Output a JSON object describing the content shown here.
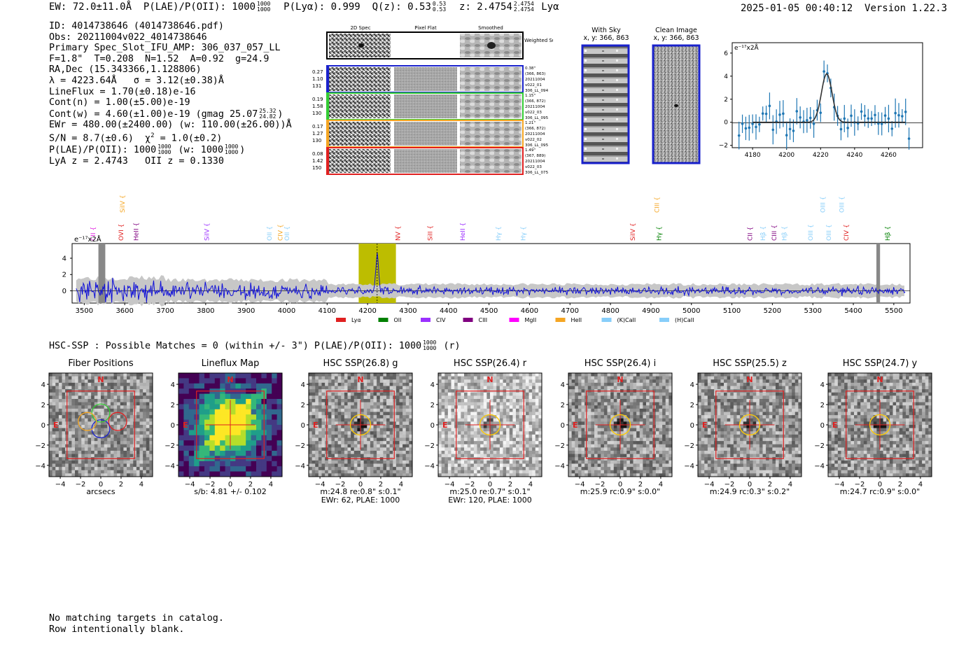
{
  "header": {
    "ew": "EW: 72.0±11.0Å",
    "plae_label": "P(LAE)/P(OII): 1000",
    "plae_hi": "1000",
    "plae_lo": "1000",
    "plya": "P(Lyα): 0.999",
    "qz": "Q(z): 0.53",
    "qz_hi": "0.53",
    "qz_lo": "0.53",
    "z": "z: 2.4754",
    "z_hi": "2.4754",
    "z_lo": "2.4754",
    "z_line": "Lyα",
    "timestamp": "2025-01-05 00:40:12",
    "version": "Version 1.22.3"
  },
  "info": {
    "id": "ID: 4014738646 (4014738646.pdf)",
    "obs": "Obs: 20211004v022_4014738646",
    "primary": "Primary Spec_Slot_IFU_AMP: 306_037_057_LL",
    "f_line": "F=1.8\"  T=0.208  N=1.52  A=0.92  g=24.9",
    "radec": "RA,Dec (15.343366,1.128806)",
    "lambda": "λ = 4223.64Å   σ = 3.12(±0.38)Å",
    "lineflux": "LineFlux = 1.70(±0.18)e-16",
    "contn": "Cont(n) = 1.00(±5.00)e-19",
    "contw": "Cont(w) = 4.60(±1.00)e-19 (gmag 25.07",
    "gmag_hi": "25.32",
    "gmag_lo": "24.82",
    "ewr": "EWr = 480.00(±2400.00) (w: 110.00(±26.00))Å",
    "sn": "S/N = 8.7(±0.6)  χ",
    "sn2": "2",
    "sn3": " = 1.0(±0.2)",
    "plae": "P(LAE)/P(OII): 1000",
    "plae_hi": "1000",
    "plae_lo": "1000",
    "plae_w": "(w: 1000",
    "plae_w_hi": "1000",
    "plae_w_lo": "1000",
    "plae_close": ")",
    "lya_z": "LyA z = 2.4743   OII z = 0.1330"
  },
  "cutouts": {
    "col_headers": [
      "2D Spec",
      "Pixel Flat",
      "Smoothed"
    ],
    "weighted_sum": "Weighted Sum",
    "rows": [
      {
        "left": [
          "0.27",
          "1.10",
          "131"
        ],
        "right": [
          "0.38\"",
          "(366, 863)",
          "20211004",
          "v022_01",
          "306_LL_094"
        ],
        "color": "#1a22cc"
      },
      {
        "left": [
          "0.19",
          "1.58",
          "130"
        ],
        "right": [
          "1.15\"",
          "(366, 872)",
          "20211004",
          "v022_03",
          "306_LL_095"
        ],
        "color": "#33cc33"
      },
      {
        "left": [
          "0.17",
          "1.27",
          "130"
        ],
        "right": [
          "1.21\"",
          "(366, 872)",
          "20211004",
          "v022_02",
          "306_LL_095"
        ],
        "color": "#f5a623"
      },
      {
        "left": [
          "0.08",
          "1.42",
          "150"
        ],
        "right": [
          "1.49\"",
          "(367, 889)",
          "20211004",
          "v022_03",
          "306_LL_075"
        ],
        "color": "#e02020"
      }
    ]
  },
  "sky": {
    "with_sky_title": "With Sky",
    "with_sky_xy": "x, y: 366, 863",
    "clean_title": "Clean Image",
    "clean_xy": "x, y: 366, 863"
  },
  "zoom_plot": {
    "unit": "e⁻¹⁷x2Å",
    "yticks": [
      "−2",
      "0",
      "2",
      "4",
      "6"
    ],
    "xticks": [
      "4180",
      "4200",
      "4220",
      "4240",
      "4260"
    ]
  },
  "spectrum": {
    "unit": "e⁻¹⁷x2Å",
    "yticks": [
      "0",
      "2",
      "4"
    ],
    "xticks": [
      "3500",
      "3600",
      "3700",
      "3800",
      "3900",
      "4000",
      "4100",
      "4200",
      "4300",
      "4400",
      "4500",
      "4600",
      "4700",
      "4800",
      "4900",
      "5000",
      "5100",
      "5200",
      "5300",
      "5400",
      "5500"
    ],
    "line_labels": [
      {
        "t": "CII",
        "c": "#e020e0",
        "x": 3527,
        "row": 1
      },
      {
        "t": "SiIV",
        "c": "#f5a623",
        "x": 3600,
        "row": 0
      },
      {
        "t": "OVI",
        "c": "#e02020",
        "x": 3596,
        "row": 1
      },
      {
        "t": "HeII",
        "c": "#800080",
        "x": 3633,
        "row": 1
      },
      {
        "t": "SiIV",
        "c": "#9b30ff",
        "x": 3808,
        "row": 1
      },
      {
        "t": "OII",
        "c": "#87cefa",
        "x": 3963,
        "row": 1
      },
      {
        "t": "CIV",
        "c": "#f5a623",
        "x": 3990,
        "row": 1
      },
      {
        "t": "OII",
        "c": "#87cefa",
        "x": 4006,
        "row": 1
      },
      {
        "t": "NV",
        "c": "#e02020",
        "x": 4280,
        "row": 1
      },
      {
        "t": "SiII",
        "c": "#e02020",
        "x": 4360,
        "row": 1
      },
      {
        "t": "HeII",
        "c": "#9b30ff",
        "x": 4440,
        "row": 1
      },
      {
        "t": "Hγ",
        "c": "#87cefa",
        "x": 4528,
        "row": 1
      },
      {
        "t": "Hγ",
        "c": "#87cefa",
        "x": 4590,
        "row": 1
      },
      {
        "t": "SiIV",
        "c": "#e02020",
        "x": 4860,
        "row": 1
      },
      {
        "t": "CIII",
        "c": "#f5a623",
        "x": 4920,
        "row": 0
      },
      {
        "t": "Hγ",
        "c": "#008000",
        "x": 4925,
        "row": 1
      },
      {
        "t": "CII",
        "c": "#800080",
        "x": 5150,
        "row": 1
      },
      {
        "t": "Hβ",
        "c": "#87cefa",
        "x": 5182,
        "row": 1
      },
      {
        "t": "CIII",
        "c": "#800080",
        "x": 5210,
        "row": 1
      },
      {
        "t": "Hβ",
        "c": "#87cefa",
        "x": 5235,
        "row": 1
      },
      {
        "t": "OIII",
        "c": "#87cefa",
        "x": 5300,
        "row": 1
      },
      {
        "t": "OIII",
        "c": "#87cefa",
        "x": 5330,
        "row": 0
      },
      {
        "t": "OIII",
        "c": "#87cefa",
        "x": 5345,
        "row": 1
      },
      {
        "t": "OIII",
        "c": "#87cefa",
        "x": 5377,
        "row": 0
      },
      {
        "t": "CIV",
        "c": "#e02020",
        "x": 5388,
        "row": 1
      },
      {
        "t": "Hβ",
        "c": "#008000",
        "x": 5490,
        "row": 1
      }
    ],
    "legend": [
      {
        "t": "Lyα",
        "c": "#e02020"
      },
      {
        "t": "OII",
        "c": "#008000"
      },
      {
        "t": "CIV",
        "c": "#9b30ff"
      },
      {
        "t": "CIII",
        "c": "#800080"
      },
      {
        "t": "MgII",
        "c": "#ff00ff"
      },
      {
        "t": "HeII",
        "c": "#f5a623"
      },
      {
        "t": "(K)CaII",
        "c": "#87cefa"
      },
      {
        "t": "(H)CaII",
        "c": "#87cefa"
      }
    ]
  },
  "hsc": {
    "summary": "HSC-SSP : Possible Matches = 0 (within +/- 3\")  P(LAE)/P(OII): 1000",
    "summary_hi": "1000",
    "summary_lo": "1000",
    "summary_band": "(r)",
    "compass_n": "N",
    "compass_e": "E",
    "yticks": [
      "4",
      "2",
      "0",
      "−2",
      "−4"
    ],
    "xticks": [
      "−4",
      "−2",
      "0",
      "2",
      "4"
    ],
    "panels": [
      {
        "title": "Fiber Positions",
        "foot": [
          "arcsecs"
        ]
      },
      {
        "title": "Lineflux Map",
        "foot": [
          "s/b: 4.81 +/- 0.102"
        ]
      },
      {
        "title": "HSC SSP(26.8) g",
        "foot": [
          "m:24.8  re:0.8\"  s:0.1\"",
          "EWr: 62, PLAE: 1000"
        ]
      },
      {
        "title": "HSC SSP(26.4) r",
        "foot": [
          "m:25.0  re:0.7\"  s:0.1\"",
          "EWr: 120, PLAE: 1000"
        ]
      },
      {
        "title": "HSC SSP(26.4) i",
        "foot": [
          "m:25.9 rc:0.9\"  s:0.0\""
        ]
      },
      {
        "title": "HSC SSP(25.5) z",
        "foot": [
          "m:24.9   rc:0.3\"  s:0.2\""
        ]
      },
      {
        "title": "HSC SSP(24.7) y",
        "foot": [
          "m:24.7 rc:0.9\"  s:0.0\""
        ]
      }
    ]
  },
  "footer": {
    "line1": "No matching targets in catalog.",
    "line2": "Row intentionally blank."
  }
}
